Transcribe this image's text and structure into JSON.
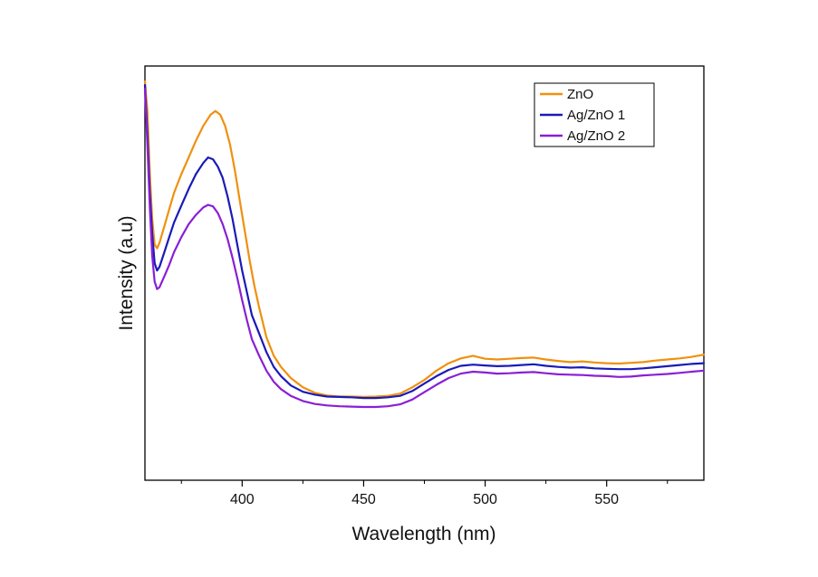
{
  "chart_data": {
    "type": "line",
    "xlabel": "Wavelength (nm)",
    "ylabel": "Intensity (a.u)",
    "xlim": [
      360,
      590
    ],
    "ylim": [
      0,
      100
    ],
    "y_ticks_shown": false,
    "x_ticks": [
      400,
      450,
      500,
      550
    ],
    "x_minor_ticks": [
      375,
      425,
      475,
      525,
      575
    ],
    "grid": false,
    "legend_position": "top-right",
    "series": [
      {
        "name": "ZnO",
        "color": "#f0900e",
        "points": [
          [
            360,
            100
          ],
          [
            361,
            92
          ],
          [
            362,
            75
          ],
          [
            363,
            63
          ],
          [
            364,
            56
          ],
          [
            365,
            55
          ],
          [
            366,
            56.5
          ],
          [
            368,
            61
          ],
          [
            370,
            65.5
          ],
          [
            372,
            70
          ],
          [
            375,
            75
          ],
          [
            378,
            79.5
          ],
          [
            381,
            84
          ],
          [
            384,
            88
          ],
          [
            387,
            91
          ],
          [
            389,
            92
          ],
          [
            391,
            91
          ],
          [
            393,
            88
          ],
          [
            395,
            83
          ],
          [
            397,
            76
          ],
          [
            399,
            68
          ],
          [
            401,
            60
          ],
          [
            403,
            52
          ],
          [
            405,
            45
          ],
          [
            407,
            39
          ],
          [
            410,
            31
          ],
          [
            413,
            26
          ],
          [
            416,
            23
          ],
          [
            420,
            20
          ],
          [
            425,
            17.5
          ],
          [
            430,
            16
          ],
          [
            435,
            15.3
          ],
          [
            440,
            15
          ],
          [
            445,
            15
          ],
          [
            450,
            14.9
          ],
          [
            455,
            15
          ],
          [
            460,
            15.2
          ],
          [
            465,
            15.8
          ],
          [
            470,
            17.5
          ],
          [
            475,
            19.5
          ],
          [
            480,
            22
          ],
          [
            485,
            24
          ],
          [
            490,
            25.3
          ],
          [
            495,
            26
          ],
          [
            500,
            25.2
          ],
          [
            505,
            25
          ],
          [
            510,
            25.2
          ],
          [
            515,
            25.4
          ],
          [
            520,
            25.5
          ],
          [
            525,
            25
          ],
          [
            530,
            24.6
          ],
          [
            535,
            24.3
          ],
          [
            540,
            24.5
          ],
          [
            545,
            24.2
          ],
          [
            550,
            24
          ],
          [
            555,
            23.9
          ],
          [
            560,
            24.1
          ],
          [
            565,
            24.3
          ],
          [
            570,
            24.7
          ],
          [
            575,
            25
          ],
          [
            580,
            25.3
          ],
          [
            585,
            25.7
          ],
          [
            590,
            26.3
          ]
        ]
      },
      {
        "name": "Ag/ZnO 1",
        "color": "#1a1ab8",
        "points": [
          [
            360,
            99
          ],
          [
            361,
            86
          ],
          [
            362,
            70
          ],
          [
            363,
            59
          ],
          [
            364,
            51
          ],
          [
            365,
            49
          ],
          [
            366,
            50
          ],
          [
            368,
            54
          ],
          [
            370,
            58
          ],
          [
            372,
            62
          ],
          [
            375,
            66.5
          ],
          [
            378,
            71
          ],
          [
            381,
            75
          ],
          [
            384,
            78
          ],
          [
            386,
            79.5
          ],
          [
            388,
            79
          ],
          [
            390,
            77
          ],
          [
            392,
            74
          ],
          [
            394,
            69
          ],
          [
            396,
            63
          ],
          [
            398,
            56
          ],
          [
            400,
            49
          ],
          [
            402,
            43
          ],
          [
            404,
            37
          ],
          [
            407,
            32
          ],
          [
            410,
            27
          ],
          [
            413,
            23
          ],
          [
            416,
            20.5
          ],
          [
            420,
            18
          ],
          [
            425,
            16.3
          ],
          [
            430,
            15.5
          ],
          [
            435,
            15
          ],
          [
            440,
            14.9
          ],
          [
            445,
            14.8
          ],
          [
            450,
            14.6
          ],
          [
            455,
            14.6
          ],
          [
            460,
            14.8
          ],
          [
            465,
            15.2
          ],
          [
            470,
            16.5
          ],
          [
            475,
            18.5
          ],
          [
            480,
            20.5
          ],
          [
            485,
            22.2
          ],
          [
            490,
            23.3
          ],
          [
            495,
            23.6
          ],
          [
            500,
            23.4
          ],
          [
            505,
            23.2
          ],
          [
            510,
            23.3
          ],
          [
            515,
            23.5
          ],
          [
            520,
            23.7
          ],
          [
            525,
            23.3
          ],
          [
            530,
            23
          ],
          [
            535,
            22.8
          ],
          [
            540,
            22.9
          ],
          [
            545,
            22.6
          ],
          [
            550,
            22.5
          ],
          [
            555,
            22.4
          ],
          [
            560,
            22.4
          ],
          [
            565,
            22.6
          ],
          [
            570,
            22.9
          ],
          [
            575,
            23.2
          ],
          [
            580,
            23.5
          ],
          [
            585,
            23.8
          ],
          [
            590,
            24
          ]
        ]
      },
      {
        "name": "Ag/ZnO 2",
        "color": "#8a1fd6",
        "points": [
          [
            360,
            98
          ],
          [
            361,
            83
          ],
          [
            362,
            66
          ],
          [
            363,
            53
          ],
          [
            364,
            46
          ],
          [
            365,
            44
          ],
          [
            366,
            44.5
          ],
          [
            368,
            47.5
          ],
          [
            370,
            50.5
          ],
          [
            372,
            54
          ],
          [
            375,
            58
          ],
          [
            378,
            61.5
          ],
          [
            381,
            64
          ],
          [
            384,
            66
          ],
          [
            386,
            66.7
          ],
          [
            388,
            66.3
          ],
          [
            390,
            64.5
          ],
          [
            392,
            61.5
          ],
          [
            394,
            57.5
          ],
          [
            396,
            52.5
          ],
          [
            398,
            47
          ],
          [
            400,
            41
          ],
          [
            402,
            35.5
          ],
          [
            404,
            30.5
          ],
          [
            407,
            26
          ],
          [
            410,
            22
          ],
          [
            413,
            19
          ],
          [
            416,
            17
          ],
          [
            420,
            15.2
          ],
          [
            425,
            13.8
          ],
          [
            430,
            13
          ],
          [
            435,
            12.6
          ],
          [
            440,
            12.4
          ],
          [
            445,
            12.3
          ],
          [
            450,
            12.2
          ],
          [
            455,
            12.2
          ],
          [
            460,
            12.4
          ],
          [
            465,
            12.9
          ],
          [
            470,
            14.2
          ],
          [
            475,
            16.2
          ],
          [
            480,
            18.2
          ],
          [
            485,
            20
          ],
          [
            490,
            21.2
          ],
          [
            495,
            21.7
          ],
          [
            500,
            21.5
          ],
          [
            505,
            21.2
          ],
          [
            510,
            21.3
          ],
          [
            515,
            21.5
          ],
          [
            520,
            21.6
          ],
          [
            525,
            21.3
          ],
          [
            530,
            21
          ],
          [
            535,
            20.9
          ],
          [
            540,
            20.8
          ],
          [
            545,
            20.6
          ],
          [
            550,
            20.5
          ],
          [
            555,
            20.3
          ],
          [
            560,
            20.4
          ],
          [
            565,
            20.7
          ],
          [
            570,
            20.9
          ],
          [
            575,
            21.1
          ],
          [
            580,
            21.4
          ],
          [
            585,
            21.7
          ],
          [
            590,
            22
          ]
        ]
      }
    ]
  }
}
